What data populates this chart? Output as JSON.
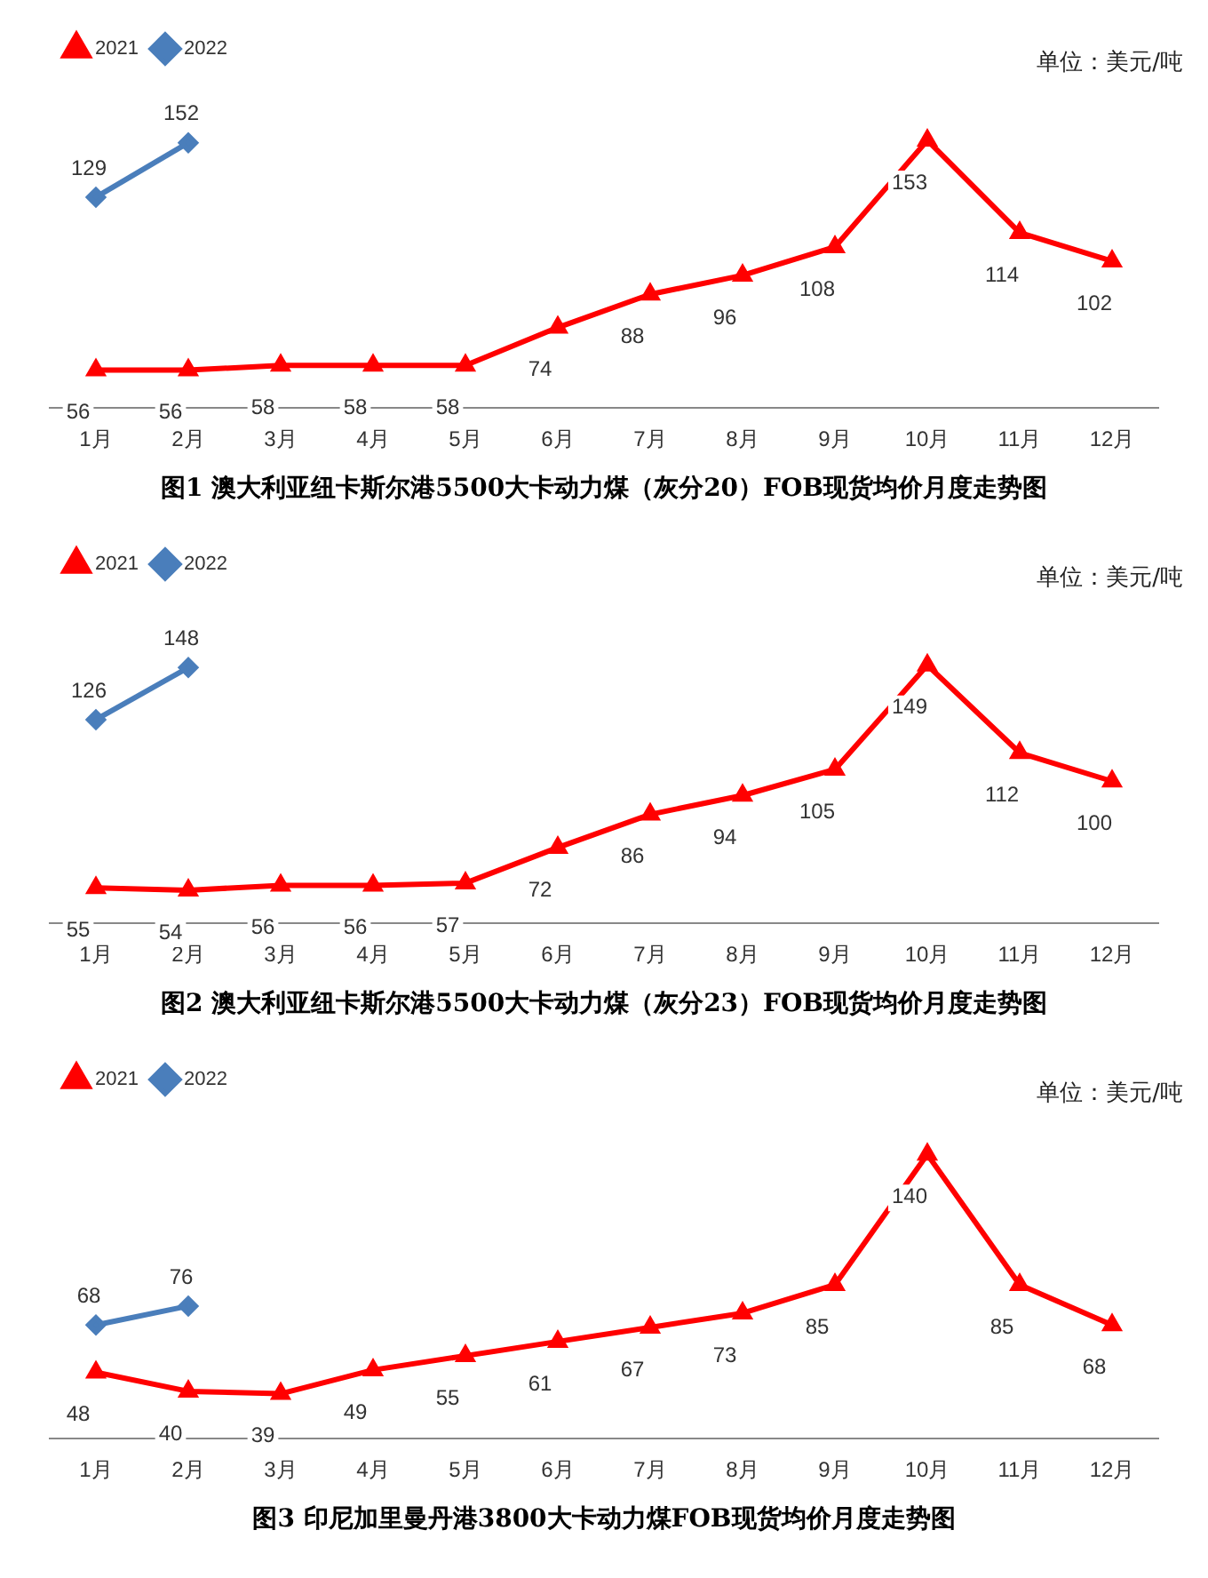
{
  "chart_data": [
    {
      "type": "line",
      "title": "图1  澳大利亚纽卡斯尔港5500大卡动力煤（灰分20）FOB现货均价月度走势图",
      "annotations": [
        "单位：美元/吨"
      ],
      "categories": [
        "1月",
        "2月",
        "3月",
        "4月",
        "5月",
        "6月",
        "7月",
        "8月",
        "9月",
        "10月",
        "11月",
        "12月"
      ],
      "series": [
        {
          "name": "2021",
          "color": "#ff0000",
          "marker": "triangle",
          "values": [
            56,
            56,
            58,
            58,
            58,
            74,
            88,
            96,
            108,
            153,
            114,
            102
          ]
        },
        {
          "name": "2022",
          "color": "#4a7ebb",
          "marker": "diamond",
          "values": [
            129,
            152,
            null,
            null,
            null,
            null,
            null,
            null,
            null,
            null,
            null,
            null
          ]
        }
      ],
      "data_labels": true,
      "legend": "top left",
      "grid": false
    },
    {
      "type": "line",
      "title": "图2  澳大利亚纽卡斯尔港5500大卡动力煤（灰分23）FOB现货均价月度走势图",
      "annotations": [
        "单位：美元/吨"
      ],
      "categories": [
        "1月",
        "2月",
        "3月",
        "4月",
        "5月",
        "6月",
        "7月",
        "8月",
        "9月",
        "10月",
        "11月",
        "12月"
      ],
      "series": [
        {
          "name": "2021",
          "color": "#ff0000",
          "marker": "triangle",
          "values": [
            55,
            54,
            56,
            56,
            57,
            72,
            86,
            94,
            105,
            149,
            112,
            100
          ]
        },
        {
          "name": "2022",
          "color": "#4a7ebb",
          "marker": "diamond",
          "values": [
            126,
            148,
            null,
            null,
            null,
            null,
            null,
            null,
            null,
            null,
            null,
            null
          ]
        }
      ],
      "data_labels": true,
      "legend": "top left",
      "grid": false
    },
    {
      "type": "line",
      "title": "图3  印尼加里曼丹港3800大卡动力煤FOB现货均价月度走势图",
      "annotations": [
        "单位：美元/吨"
      ],
      "categories": [
        "1月",
        "2月",
        "3月",
        "4月",
        "5月",
        "6月",
        "7月",
        "8月",
        "9月",
        "10月",
        "11月",
        "12月"
      ],
      "series": [
        {
          "name": "2021",
          "color": "#ff0000",
          "marker": "triangle",
          "values": [
            48,
            40,
            39,
            49,
            55,
            61,
            67,
            73,
            85,
            140,
            85,
            68
          ]
        },
        {
          "name": "2022",
          "color": "#4a7ebb",
          "marker": "diamond",
          "values": [
            68,
            76,
            null,
            null,
            null,
            null,
            null,
            null,
            null,
            null,
            null,
            null
          ]
        }
      ],
      "data_labels": true,
      "legend": "top left",
      "grid": false
    }
  ]
}
